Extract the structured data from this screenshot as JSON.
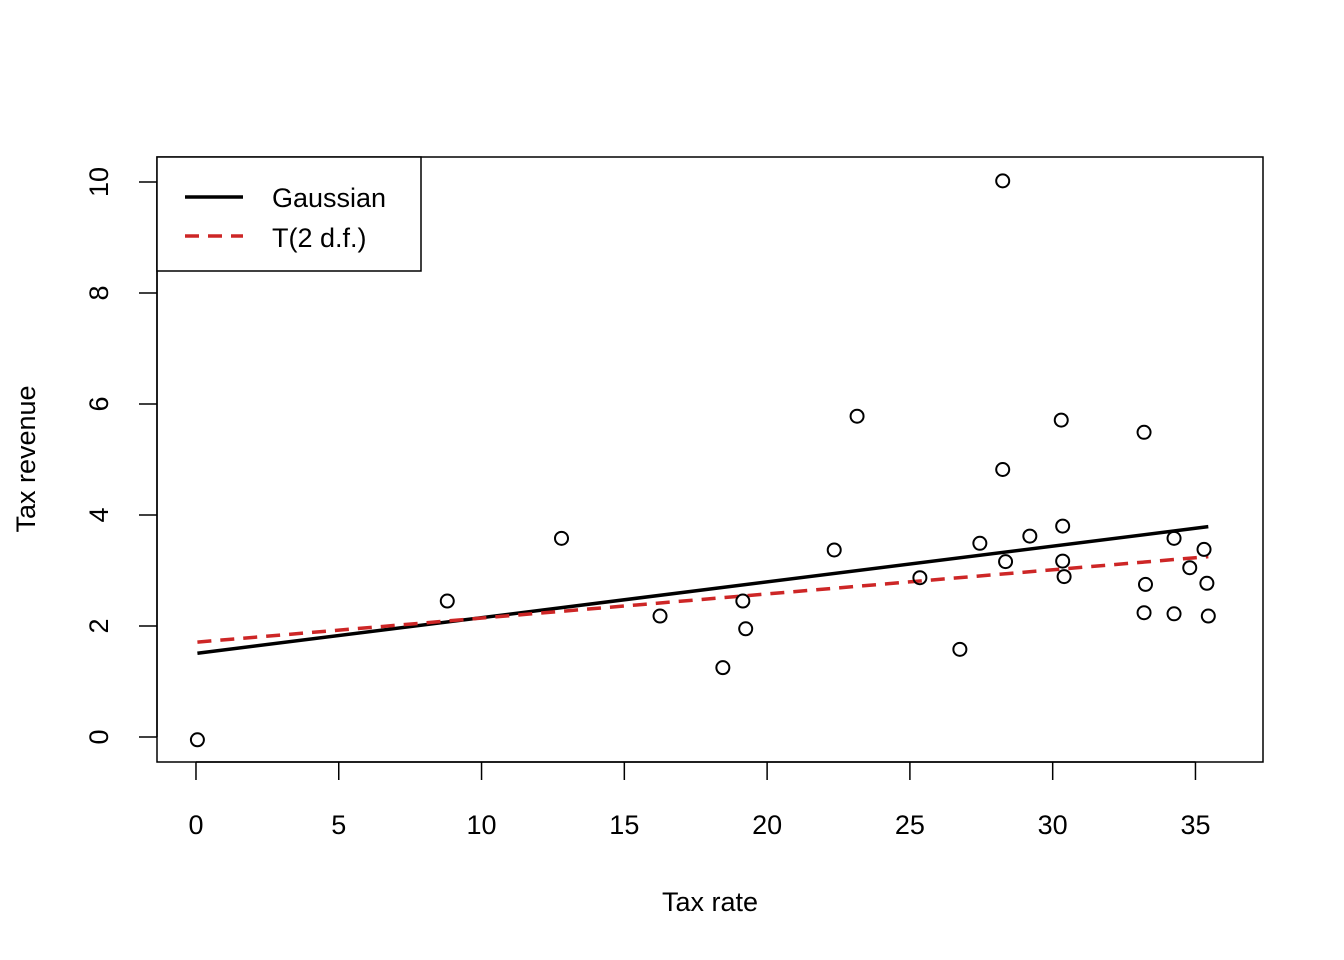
{
  "chart_data": {
    "type": "scatter",
    "title": "",
    "xlabel": "Tax rate",
    "ylabel": "Tax revenue",
    "xlim": [
      -1.365,
      37.365
    ],
    "ylim": [
      -0.45,
      10.45
    ],
    "x_ticks": [
      0,
      5,
      10,
      15,
      20,
      25,
      30,
      35
    ],
    "y_ticks": [
      0,
      2,
      4,
      6,
      8,
      10
    ],
    "grid": false,
    "legend_position": "top-left",
    "points": [
      {
        "x": 0.05,
        "y": -0.05
      },
      {
        "x": 8.8,
        "y": 2.45
      },
      {
        "x": 12.8,
        "y": 3.58
      },
      {
        "x": 16.25,
        "y": 2.18
      },
      {
        "x": 18.45,
        "y": 1.25
      },
      {
        "x": 19.15,
        "y": 2.45
      },
      {
        "x": 19.25,
        "y": 1.95
      },
      {
        "x": 22.35,
        "y": 3.37
      },
      {
        "x": 23.15,
        "y": 5.78
      },
      {
        "x": 25.35,
        "y": 2.87
      },
      {
        "x": 26.75,
        "y": 1.58
      },
      {
        "x": 27.45,
        "y": 3.49
      },
      {
        "x": 28.25,
        "y": 10.02
      },
      {
        "x": 28.25,
        "y": 4.82
      },
      {
        "x": 28.35,
        "y": 3.16
      },
      {
        "x": 29.2,
        "y": 3.62
      },
      {
        "x": 30.3,
        "y": 5.71
      },
      {
        "x": 30.35,
        "y": 3.8
      },
      {
        "x": 30.35,
        "y": 3.17
      },
      {
        "x": 30.4,
        "y": 2.89
      },
      {
        "x": 33.2,
        "y": 5.49
      },
      {
        "x": 33.2,
        "y": 2.24
      },
      {
        "x": 33.25,
        "y": 2.75
      },
      {
        "x": 34.25,
        "y": 3.58
      },
      {
        "x": 34.25,
        "y": 2.22
      },
      {
        "x": 34.8,
        "y": 3.05
      },
      {
        "x": 35.3,
        "y": 3.38
      },
      {
        "x": 35.4,
        "y": 2.77
      },
      {
        "x": 35.45,
        "y": 2.18
      }
    ],
    "series": [
      {
        "name": "Gaussian",
        "style": "solid",
        "color": "#000000",
        "x": [
          0.05,
          35.45
        ],
        "y": [
          1.51,
          3.79
        ]
      },
      {
        "name": "T(2 d.f.)",
        "style": "dashed",
        "color": "#cd2626",
        "x": [
          0.05,
          35.45
        ],
        "y": [
          1.71,
          3.25
        ]
      }
    ]
  }
}
